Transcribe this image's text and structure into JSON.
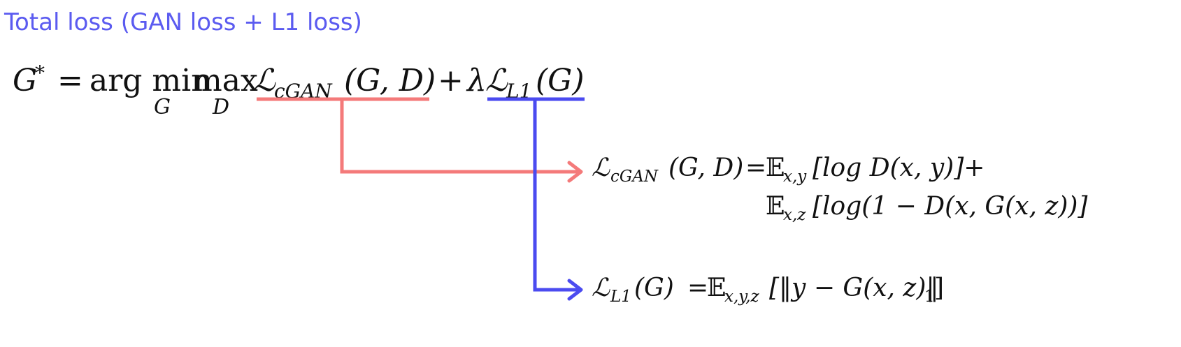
{
  "title": "Total loss (GAN loss + L1 loss)",
  "colors": {
    "title": "#5b5bf0",
    "gan": "#f47a7a",
    "l1": "#4b4bf0",
    "text": "#111111"
  },
  "main_equation": {
    "lhs": "G",
    "lhs_sup": "*",
    "equals": "=",
    "argmin": "arg min",
    "min_sub": "G",
    "max": "max",
    "max_sub": "D",
    "gan_symbol": "ℒ",
    "gan_sub": "cGAN",
    "gan_args": "(G, D)",
    "plus": "+",
    "lambda": "λ",
    "l1_symbol": "ℒ",
    "l1_sub": "L1",
    "l1_args": "(G)"
  },
  "gan_definition": {
    "symbol": "ℒ",
    "sub": "cGAN",
    "args": "(G, D)",
    "equals": "=",
    "line1_E": "𝔼",
    "line1_E_sub": "x,y",
    "line1_body": "[log D(x, y)]+",
    "line2_E": "𝔼",
    "line2_E_sub": "x,z",
    "line2_body": "[log(1 − D(x, G(x, z))]"
  },
  "l1_definition": {
    "symbol": "ℒ",
    "sub": "L1",
    "args": "(G)",
    "equals": "=",
    "E": "𝔼",
    "E_sub": "x,y,z",
    "body": "[‖y − G(x, z)‖",
    "norm_sub": "1",
    "close": "]"
  }
}
